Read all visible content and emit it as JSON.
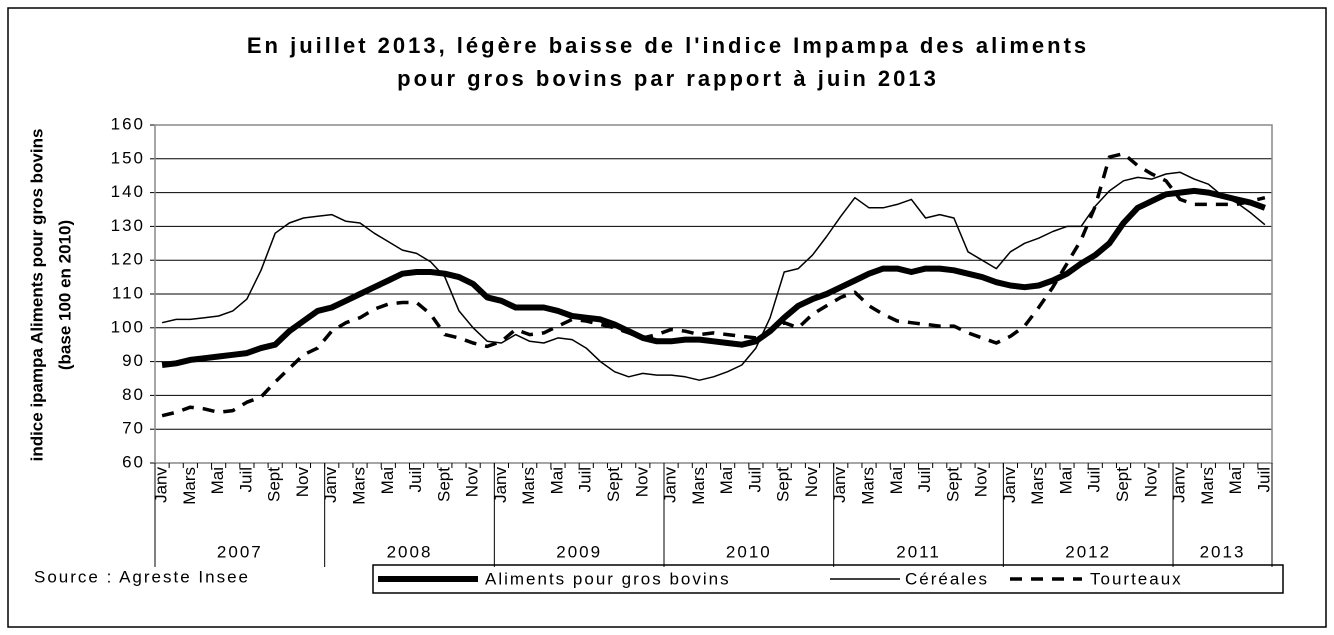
{
  "chart_data": {
    "type": "line",
    "title": [
      "En juillet 2013, légère baisse de l'indice Impampa des aliments",
      "pour gros bovins par rapport à juin 2013"
    ],
    "y_label": [
      "indice ipampa Aliments pour gros bovins",
      "(base 100 en 2010)"
    ],
    "source": "Source : Agreste Insee",
    "categories": [
      "Janv",
      null,
      "Mars",
      null,
      "Mai",
      null,
      "Juil",
      null,
      "Sept",
      null,
      "Nov",
      null,
      "Janv",
      null,
      "Mars",
      null,
      "Mai",
      null,
      "Juil",
      null,
      "Sept",
      null,
      "Nov",
      null,
      "Janv",
      null,
      "Mars",
      null,
      "Mai",
      null,
      "Juil",
      null,
      "Sept",
      null,
      "Nov",
      null,
      "Janv",
      null,
      "Mars",
      null,
      "Mai",
      null,
      "Juil",
      null,
      "Sept",
      null,
      "Nov",
      null,
      "Janv",
      null,
      "Mars",
      null,
      "Mai",
      null,
      "Juil",
      null,
      "Sept",
      null,
      "Nov",
      null,
      "Janv",
      null,
      "Mars",
      null,
      "Mai",
      null,
      "Juil",
      null,
      "Sept",
      null,
      "Nov",
      null,
      "Janv",
      null,
      "Mars",
      null,
      "Mai",
      null,
      "Juil"
    ],
    "years": [
      "2007",
      "2008",
      "2009",
      "2010",
      "2011",
      "2012",
      "2013"
    ],
    "ylim": [
      60,
      160
    ],
    "yticks": [
      60,
      70,
      80,
      90,
      100,
      110,
      120,
      130,
      140,
      150,
      160
    ],
    "grid": true,
    "series": [
      {
        "name": "Aliments pour gros bovins",
        "color": "#000000",
        "style": "thick",
        "values": [
          89,
          89.5,
          90.5,
          91,
          91.5,
          92,
          92.5,
          94,
          95,
          99,
          102,
          105,
          106,
          108,
          110,
          112,
          114,
          116,
          116.5,
          116.5,
          116,
          115,
          113,
          109,
          108,
          106,
          106,
          106,
          105,
          103.5,
          103,
          102.5,
          101,
          99,
          97,
          96,
          96,
          96.5,
          96.5,
          96,
          95.5,
          95,
          96,
          99,
          103,
          106.5,
          108.5,
          110,
          112,
          114,
          116,
          117.5,
          117.5,
          116.5,
          117.5,
          117.5,
          117,
          116,
          115,
          113.5,
          112.5,
          112,
          112.5,
          114,
          116,
          119,
          121.5,
          125,
          131,
          135.5,
          137.5,
          139.5,
          140,
          140.5,
          140,
          139,
          138,
          137,
          135.5
        ]
      },
      {
        "name": "Céréales",
        "color": "#000000",
        "style": "thin",
        "values": [
          101.5,
          102.5,
          102.5,
          103,
          103.5,
          105,
          108.5,
          117,
          128,
          131,
          132.5,
          133,
          133.5,
          131.5,
          131,
          128,
          125.5,
          123,
          122,
          119.5,
          115,
          105,
          100,
          96,
          95.5,
          98,
          96,
          95.5,
          97,
          96.5,
          94,
          90,
          87,
          85.5,
          86.5,
          86,
          86,
          85.5,
          84.5,
          85.5,
          87,
          89,
          94,
          103,
          116.5,
          117.5,
          121.5,
          127,
          133,
          138.5,
          135.5,
          135.5,
          136.5,
          138,
          132.5,
          133.5,
          132.5,
          122.5,
          120,
          117.5,
          122.5,
          125,
          126.5,
          128.5,
          130,
          130,
          136,
          140.5,
          143.5,
          144.5,
          144,
          145.5,
          146,
          144,
          142.5,
          139,
          137,
          134,
          130.5
        ]
      },
      {
        "name": "Tourteaux",
        "color": "#000000",
        "style": "dashed",
        "values": [
          74,
          75,
          76.5,
          76,
          75,
          75.5,
          78,
          79.5,
          84,
          88,
          92,
          94,
          99,
          101.5,
          103,
          105.5,
          107,
          107.5,
          107.5,
          104,
          98,
          97,
          95.5,
          94.5,
          96,
          99.5,
          98,
          98.5,
          100.5,
          102.5,
          102,
          101,
          100,
          98.5,
          97,
          98,
          99.5,
          99,
          98,
          98.5,
          98,
          97.5,
          97,
          99,
          101.5,
          100,
          104,
          106.5,
          109,
          110.5,
          106.5,
          104,
          102,
          101.5,
          101,
          100.5,
          100.5,
          98.5,
          97,
          95.5,
          97.5,
          100.5,
          106,
          112,
          119,
          126,
          136,
          150.5,
          151.5,
          148,
          145.5,
          143.5,
          138,
          136.5,
          136.5,
          136.5,
          136.5,
          137.5,
          138.5
        ]
      }
    ]
  }
}
